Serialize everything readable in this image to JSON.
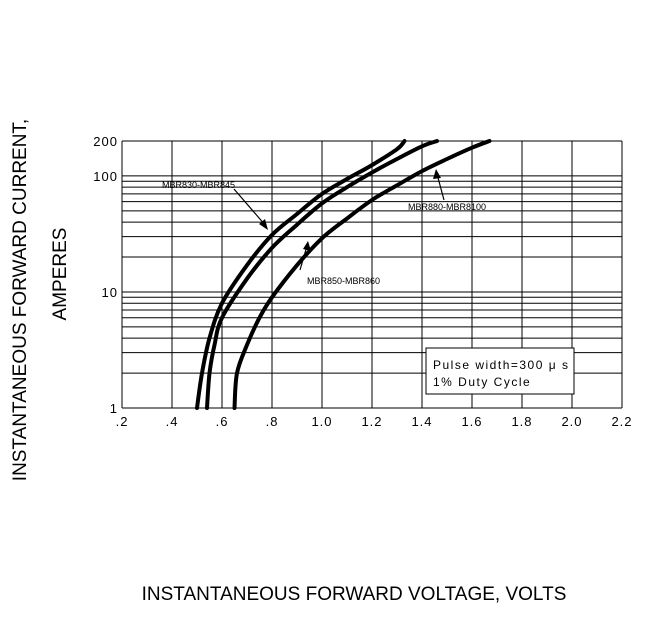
{
  "chart_data": {
    "type": "line",
    "x_axis": {
      "label": "INSTANTANEOUS FORWARD VOLTAGE,  VOLTS",
      "range": [
        0.2,
        2.2
      ],
      "ticks": [
        0.2,
        0.4,
        0.6,
        0.8,
        1.0,
        1.2,
        1.4,
        1.6,
        1.8,
        2.0,
        2.2
      ],
      "tick_labels": [
        ".2",
        ".4",
        ".6",
        ".8",
        "1.0",
        "1.2",
        "1.4",
        "1.6",
        "1.8",
        "2.0",
        "2.2"
      ]
    },
    "y_axis": {
      "label_line1": "INSTANTANEOUS FORWARD CURRENT,",
      "label_line2": "AMPERES",
      "scale": "log",
      "range": [
        1,
        200
      ],
      "ticks": [
        1,
        10,
        100,
        200
      ],
      "tick_labels": [
        "1",
        "10",
        "100",
        "200"
      ]
    },
    "grid": true,
    "series": [
      {
        "name": "MBR830-MBR845",
        "x": [
          0.5,
          0.52,
          0.55,
          0.6,
          0.7,
          0.8,
          0.9,
          1.0,
          1.1,
          1.2,
          1.3,
          1.33
        ],
        "y": [
          1,
          2,
          4,
          8,
          17,
          31,
          47,
          70,
          94,
          124,
          170,
          200
        ]
      },
      {
        "name": "MBR850-MBR860",
        "x": [
          0.54,
          0.55,
          0.57,
          0.6,
          0.7,
          0.8,
          0.9,
          1.0,
          1.1,
          1.2,
          1.3,
          1.4,
          1.46
        ],
        "y": [
          1,
          2,
          3.5,
          6,
          13,
          24,
          38,
          58,
          80,
          107,
          140,
          180,
          200
        ]
      },
      {
        "name": "MBR880-MBR8100",
        "x": [
          0.65,
          0.66,
          0.7,
          0.75,
          0.8,
          0.9,
          1.0,
          1.1,
          1.2,
          1.3,
          1.4,
          1.5,
          1.6,
          1.67
        ],
        "y": [
          1,
          2,
          3.5,
          6,
          9,
          17,
          29,
          43,
          62,
          83,
          110,
          140,
          175,
          200
        ]
      }
    ],
    "annotations": [
      {
        "text": "MBR830-MBR845",
        "points_to": "MBR830-MBR845"
      },
      {
        "text": "MBR850-MBR860",
        "points_to": "MBR850-MBR860"
      },
      {
        "text": "MBR880-MBR8100",
        "points_to": "MBR880-MBR8100"
      }
    ],
    "note": {
      "line1": "Pulse width=300 μ s",
      "line2": "1% Duty Cycle"
    }
  }
}
